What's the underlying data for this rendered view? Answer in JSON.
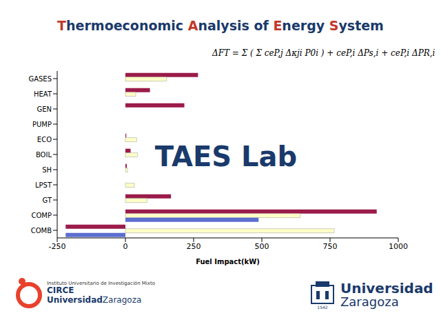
{
  "header": {
    "title": "Thermoeconomic Analysis of Energy System"
  },
  "overlay_text": "TAES Lab",
  "formula": "ΔFT = Σ ( Σ ceP,j Δκji P0i ) + ceP,i ΔPs,i + ceP,i ΔPR,i",
  "logos": {
    "circe": [
      "Instituto Universitario de Investigación Mixto",
      "CIRCE",
      "Universidad",
      "Zaragoza"
    ],
    "unizar": [
      "Universidad",
      "Zaragoza",
      "1542"
    ]
  },
  "chart_data": {
    "type": "bar",
    "orientation": "horizontal",
    "x_label": "Fuel Impact(kW)",
    "categories": [
      "GASES",
      "HEAT",
      "GEN",
      "PUMP",
      "ECO",
      "BOIL",
      "SH",
      "LPST",
      "GT",
      "COMP",
      "COMB"
    ],
    "series": [
      {
        "color": "#9b1b4a",
        "values": [
          266,
          90,
          216,
          0,
          3,
          19,
          5,
          0,
          167,
          921,
          -219
        ]
      },
      {
        "color": "#ffffc8",
        "values": [
          151,
          38,
          0,
          0,
          41,
          44,
          8,
          33,
          79,
          641,
          765
        ]
      },
      {
        "color": "#5b6ed0",
        "values": [
          0,
          0,
          0,
          0,
          0,
          0,
          0,
          0,
          0,
          488,
          -219
        ]
      }
    ],
    "xlim": [
      -250,
      1000
    ],
    "xticks": [
      -250,
      0,
      250,
      500,
      750,
      1000
    ],
    "grid": false
  }
}
